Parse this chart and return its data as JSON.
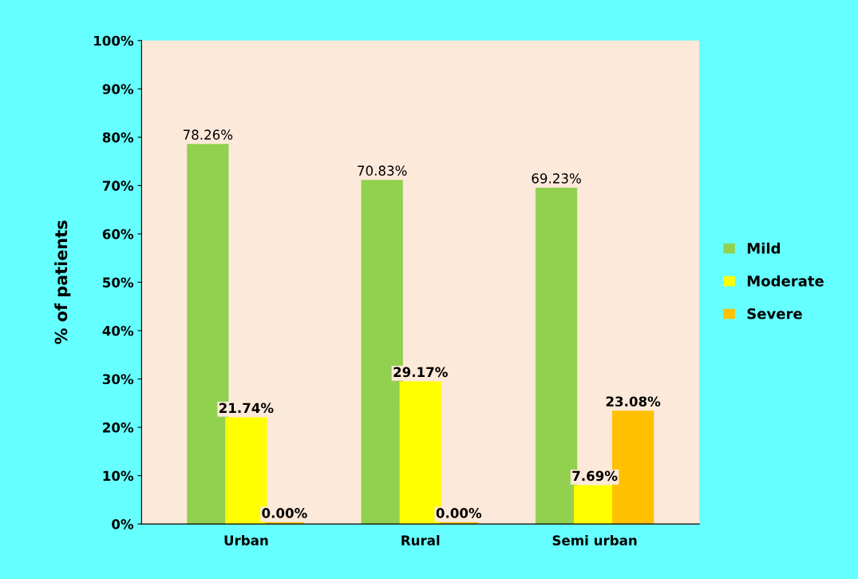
{
  "chart_data": {
    "type": "bar",
    "ylabel": "% of patients",
    "categories": [
      "Urban",
      "Rural",
      "Semi urban"
    ],
    "series": [
      {
        "name": "Mild",
        "color": "#92d050",
        "values": [
          78.26,
          70.83,
          69.23
        ],
        "value_labels": [
          "78.26%",
          "70.83%",
          "69.23%"
        ]
      },
      {
        "name": "Moderate",
        "color": "#ffff00",
        "values": [
          21.74,
          29.17,
          7.69
        ],
        "value_labels": [
          "21.74%",
          "29.17%",
          "7.69%"
        ]
      },
      {
        "name": "Severe",
        "color": "#ffc000",
        "values": [
          0,
          0,
          23.08
        ],
        "value_labels": [
          "0.00%",
          "0.00%",
          "23.08%"
        ]
      }
    ],
    "ylim": [
      0,
      100
    ],
    "yticks": [
      {
        "value": 0,
        "label": "0%"
      },
      {
        "value": 10,
        "label": "10%"
      },
      {
        "value": 20,
        "label": "20%"
      },
      {
        "value": 30,
        "label": "30%"
      },
      {
        "value": 40,
        "label": "40%"
      },
      {
        "value": 50,
        "label": "50%"
      },
      {
        "value": 60,
        "label": "60%"
      },
      {
        "value": 70,
        "label": "70%"
      },
      {
        "value": 80,
        "label": "80%"
      },
      {
        "value": 90,
        "label": "90%"
      },
      {
        "value": 100,
        "label": "100%"
      }
    ],
    "grid": false,
    "legend": "right"
  }
}
